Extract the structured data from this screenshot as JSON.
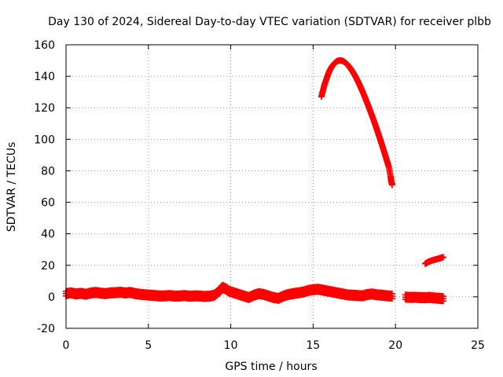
{
  "chart_data": {
    "type": "scatter",
    "title": "Day 130 of 2024, Sidereal Day-to-day VTEC variation (SDTVAR) for receiver plbb",
    "xlabel": "GPS time / hours",
    "ylabel": "SDTVAR / TECUs",
    "xlim": [
      0,
      25
    ],
    "ylim": [
      -20,
      160
    ],
    "xticks": [
      "0",
      "5",
      "10",
      "15",
      "20",
      "25"
    ],
    "yticks": [
      "-20",
      "0",
      "20",
      "40",
      "60",
      "80",
      "100",
      "120",
      "140",
      "160"
    ],
    "grid": true,
    "marker": "plus",
    "series": [
      {
        "color": "#ff0000",
        "points": [
          [
            0.0,
            2.0
          ],
          [
            0.3,
            2.5
          ],
          [
            0.6,
            1.8
          ],
          [
            0.9,
            2.2
          ],
          [
            1.2,
            1.6
          ],
          [
            1.5,
            2.4
          ],
          [
            1.8,
            2.8
          ],
          [
            2.1,
            2.3
          ],
          [
            2.4,
            2.0
          ],
          [
            2.7,
            2.5
          ],
          [
            3.0,
            2.6
          ],
          [
            3.3,
            2.9
          ],
          [
            3.6,
            2.4
          ],
          [
            3.9,
            2.8
          ],
          [
            4.2,
            2.0
          ],
          [
            4.5,
            1.6
          ],
          [
            4.8,
            1.3
          ],
          [
            5.1,
            1.0
          ],
          [
            5.4,
            0.8
          ],
          [
            5.7,
            0.5
          ],
          [
            6.0,
            0.6
          ],
          [
            6.3,
            0.8
          ],
          [
            6.6,
            0.4
          ],
          [
            6.9,
            0.5
          ],
          [
            7.2,
            0.8
          ],
          [
            7.5,
            0.3
          ],
          [
            7.8,
            0.6
          ],
          [
            8.1,
            0.5
          ],
          [
            8.4,
            0.2
          ],
          [
            8.7,
            0.4
          ],
          [
            9.0,
            1.0
          ],
          [
            9.3,
            3.5
          ],
          [
            9.5,
            6.0
          ],
          [
            9.7,
            5.0
          ],
          [
            9.9,
            3.5
          ],
          [
            10.2,
            2.5
          ],
          [
            10.5,
            1.5
          ],
          [
            10.8,
            0.5
          ],
          [
            11.1,
            -0.5
          ],
          [
            11.4,
            1.0
          ],
          [
            11.7,
            2.0
          ],
          [
            12.0,
            1.5
          ],
          [
            12.3,
            0.5
          ],
          [
            12.6,
            -0.5
          ],
          [
            12.9,
            -1.0
          ],
          [
            13.2,
            0.5
          ],
          [
            13.5,
            1.5
          ],
          [
            13.8,
            2.0
          ],
          [
            14.1,
            2.5
          ],
          [
            14.4,
            3.0
          ],
          [
            14.7,
            4.0
          ],
          [
            15.0,
            4.5
          ],
          [
            15.3,
            4.8
          ],
          [
            15.6,
            4.2
          ],
          [
            15.9,
            3.6
          ],
          [
            16.2,
            3.0
          ],
          [
            16.5,
            2.4
          ],
          [
            16.8,
            1.8
          ],
          [
            17.1,
            1.2
          ],
          [
            17.4,
            1.0
          ],
          [
            17.7,
            0.8
          ],
          [
            18.0,
            0.6
          ],
          [
            18.3,
            1.5
          ],
          [
            18.6,
            1.8
          ],
          [
            18.9,
            1.2
          ],
          [
            19.2,
            1.0
          ],
          [
            19.5,
            0.6
          ],
          [
            19.8,
            0.4
          ],
          [
            20.6,
            -0.2
          ],
          [
            20.9,
            -0.4
          ],
          [
            21.2,
            -0.3
          ],
          [
            21.5,
            -0.5
          ],
          [
            21.8,
            -0.6
          ],
          [
            22.1,
            -0.4
          ],
          [
            22.4,
            -0.8
          ],
          [
            22.7,
            -1.0
          ],
          [
            22.9,
            -1.2
          ]
        ]
      },
      {
        "color": "#ff0000",
        "points": [
          [
            15.5,
            127
          ],
          [
            15.6,
            131
          ],
          [
            15.7,
            135
          ],
          [
            15.8,
            138
          ],
          [
            15.9,
            141
          ],
          [
            16.0,
            143.5
          ],
          [
            16.1,
            145.5
          ],
          [
            16.2,
            147
          ],
          [
            16.3,
            148.3
          ],
          [
            16.4,
            149.2
          ],
          [
            16.5,
            149.8
          ],
          [
            16.6,
            150.0
          ],
          [
            16.7,
            150.0
          ],
          [
            16.8,
            149.7
          ],
          [
            16.9,
            149.1
          ],
          [
            17.0,
            148.3
          ],
          [
            17.1,
            147.2
          ],
          [
            17.2,
            145.9
          ],
          [
            17.3,
            144.5
          ],
          [
            17.4,
            142.9
          ],
          [
            17.5,
            141.1
          ],
          [
            17.6,
            139.2
          ],
          [
            17.7,
            137.2
          ],
          [
            17.8,
            135.0
          ],
          [
            17.9,
            132.7
          ],
          [
            18.0,
            130.3
          ],
          [
            18.1,
            127.8
          ],
          [
            18.2,
            125.2
          ],
          [
            18.3,
            122.6
          ],
          [
            18.4,
            119.9
          ],
          [
            18.5,
            117.1
          ],
          [
            18.6,
            114.3
          ],
          [
            18.7,
            111.4
          ],
          [
            18.8,
            108.4
          ],
          [
            18.9,
            105.3
          ],
          [
            19.0,
            102.2
          ],
          [
            19.1,
            99.0
          ],
          [
            19.2,
            95.8
          ],
          [
            19.3,
            92.5
          ],
          [
            19.4,
            89.1
          ],
          [
            19.5,
            85.7
          ],
          [
            19.6,
            82.2
          ],
          [
            19.7,
            76.5
          ],
          [
            19.75,
            73.0
          ],
          [
            19.8,
            71.0
          ]
        ]
      },
      {
        "color": "#ff0000",
        "points": [
          [
            21.8,
            21.0
          ],
          [
            21.9,
            21.6
          ],
          [
            22.0,
            22.2
          ],
          [
            22.1,
            22.6
          ],
          [
            22.2,
            23.0
          ],
          [
            22.3,
            23.3
          ],
          [
            22.4,
            23.6
          ],
          [
            22.5,
            23.9
          ],
          [
            22.6,
            24.2
          ],
          [
            22.7,
            24.5
          ],
          [
            22.8,
            24.8
          ],
          [
            22.9,
            25.2
          ]
        ]
      }
    ]
  }
}
